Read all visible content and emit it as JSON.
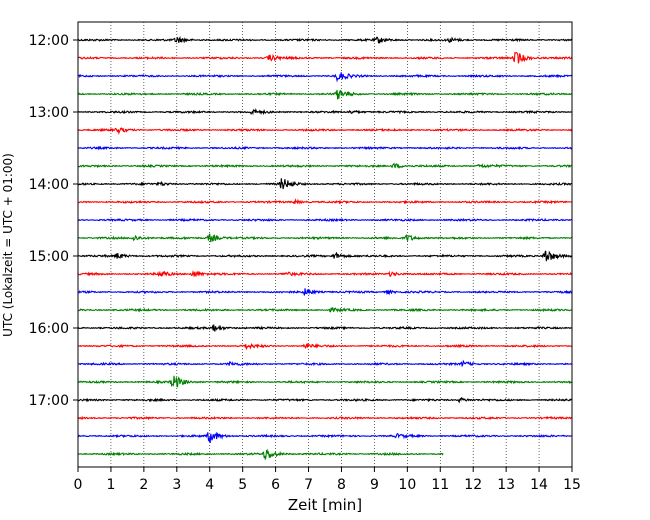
{
  "chart_data": {
    "type": "line",
    "title": "",
    "xlabel": "Zeit  [min]",
    "ylabel": "UTC (Lokalzeit = UTC + 01:00)",
    "xlim": [
      0,
      15
    ],
    "x_ticks": [
      0,
      1,
      2,
      3,
      4,
      5,
      6,
      7,
      8,
      9,
      10,
      11,
      12,
      13,
      14,
      15
    ],
    "y_tick_labels": [
      "12:00",
      "13:00",
      "14:00",
      "15:00",
      "16:00",
      "17:00"
    ],
    "grid": "vertical dotted lines at each minute",
    "row_duration_min": 15,
    "row_colors": [
      "#000000",
      "#ff0000",
      "#0000ff",
      "#008000"
    ],
    "traces": [
      {
        "start": "12:00",
        "end_min": 15,
        "events": [
          {
            "t": 3.0,
            "amp": 0.6
          },
          {
            "t": 9.1,
            "amp": 0.5
          },
          {
            "t": 11.3,
            "amp": 0.35
          }
        ]
      },
      {
        "start": "12:15",
        "end_min": 15,
        "events": [
          {
            "t": 5.8,
            "amp": 0.6
          },
          {
            "t": 13.3,
            "amp": 1.3
          }
        ]
      },
      {
        "start": "12:30",
        "end_min": 15,
        "events": [
          {
            "t": 7.9,
            "amp": 0.9
          }
        ]
      },
      {
        "start": "12:45",
        "end_min": 15,
        "events": [
          {
            "t": 7.9,
            "amp": 0.9
          }
        ]
      },
      {
        "start": "13:00",
        "end_min": 15,
        "events": [
          {
            "t": 5.3,
            "amp": 0.4
          },
          {
            "t": 8.3,
            "amp": 0.3
          }
        ]
      },
      {
        "start": "13:15",
        "end_min": 15,
        "events": [
          {
            "t": 1.2,
            "amp": 0.5
          }
        ]
      },
      {
        "start": "13:30",
        "end_min": 15,
        "events": []
      },
      {
        "start": "13:45",
        "end_min": 15,
        "events": [
          {
            "t": 9.6,
            "amp": 0.5
          },
          {
            "t": 12.2,
            "amp": 0.3
          }
        ]
      },
      {
        "start": "14:00",
        "end_min": 15,
        "events": [
          {
            "t": 6.2,
            "amp": 1.1
          },
          {
            "t": 2.5,
            "amp": 0.3
          }
        ]
      },
      {
        "start": "14:15",
        "end_min": 15,
        "events": [
          {
            "t": 6.6,
            "amp": 0.3
          }
        ]
      },
      {
        "start": "14:30",
        "end_min": 15,
        "events": []
      },
      {
        "start": "14:45",
        "end_min": 15,
        "events": [
          {
            "t": 1.7,
            "amp": 0.5
          },
          {
            "t": 4.0,
            "amp": 0.8
          },
          {
            "t": 10.0,
            "amp": 0.6
          }
        ]
      },
      {
        "start": "15:00",
        "end_min": 15,
        "events": [
          {
            "t": 1.2,
            "amp": 0.5
          },
          {
            "t": 7.8,
            "amp": 0.6
          },
          {
            "t": 14.2,
            "amp": 1.4
          }
        ]
      },
      {
        "start": "15:15",
        "end_min": 15,
        "events": [
          {
            "t": 2.5,
            "amp": 0.5
          },
          {
            "t": 3.5,
            "amp": 0.6
          },
          {
            "t": 6.3,
            "amp": 0.3
          },
          {
            "t": 9.5,
            "amp": 0.4
          }
        ]
      },
      {
        "start": "15:30",
        "end_min": 15,
        "events": [
          {
            "t": 6.9,
            "amp": 0.6
          },
          {
            "t": 9.4,
            "amp": 0.3
          }
        ]
      },
      {
        "start": "15:45",
        "end_min": 15,
        "events": [
          {
            "t": 7.7,
            "amp": 0.3
          }
        ]
      },
      {
        "start": "16:00",
        "end_min": 15,
        "events": [
          {
            "t": 4.1,
            "amp": 0.7
          }
        ]
      },
      {
        "start": "16:15",
        "end_min": 15,
        "events": [
          {
            "t": 5.1,
            "amp": 0.4
          },
          {
            "t": 6.9,
            "amp": 0.4
          }
        ]
      },
      {
        "start": "16:30",
        "end_min": 15,
        "events": [
          {
            "t": 4.6,
            "amp": 0.3
          },
          {
            "t": 11.7,
            "amp": 0.4
          }
        ]
      },
      {
        "start": "16:45",
        "end_min": 15,
        "events": [
          {
            "t": 2.9,
            "amp": 1.4
          }
        ]
      },
      {
        "start": "17:00",
        "end_min": 15,
        "events": [
          {
            "t": 11.6,
            "amp": 0.4
          }
        ]
      },
      {
        "start": "17:15",
        "end_min": 15,
        "events": []
      },
      {
        "start": "17:30",
        "end_min": 15,
        "events": [
          {
            "t": 4.0,
            "amp": 1.2
          },
          {
            "t": 9.7,
            "amp": 0.3
          }
        ]
      },
      {
        "start": "17:45",
        "end_min": 11.1,
        "events": [
          {
            "t": 5.7,
            "amp": 1.1
          }
        ]
      }
    ]
  }
}
